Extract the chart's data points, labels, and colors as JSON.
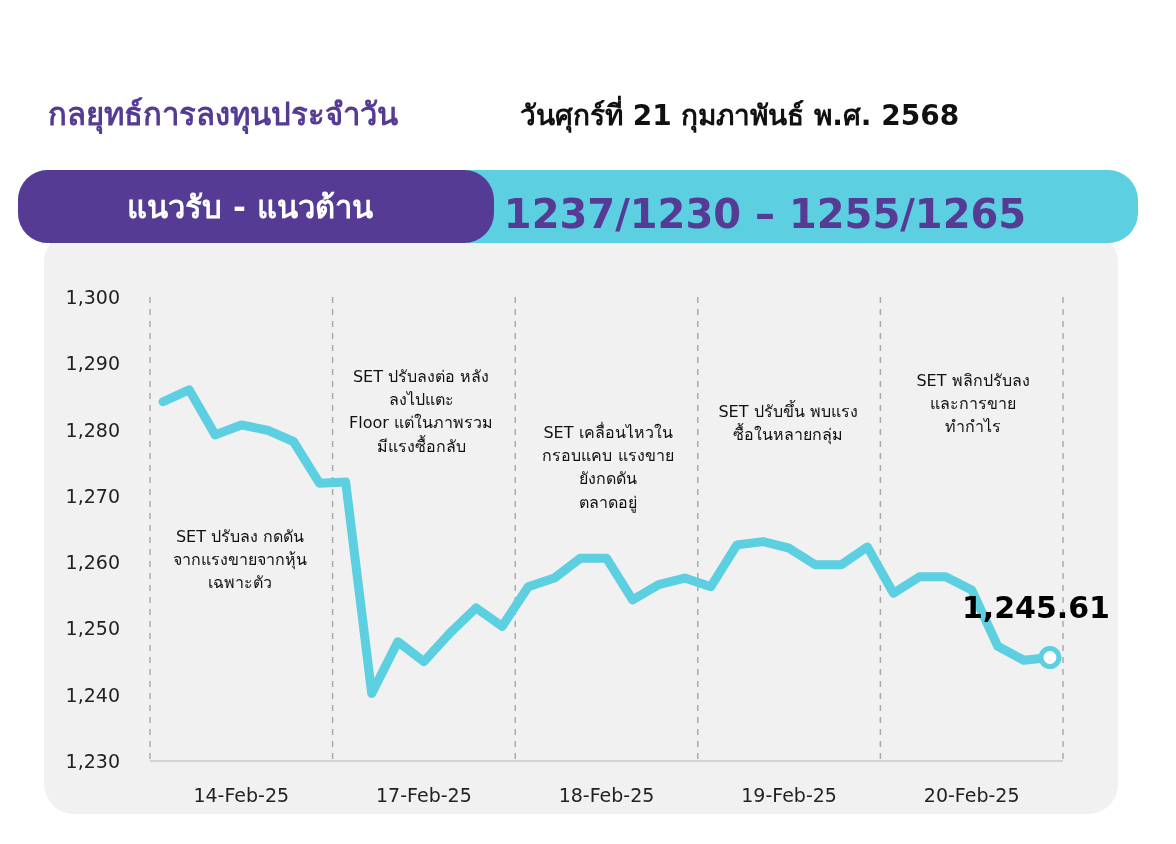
{
  "chart_data": {
    "type": "line",
    "title": "กลยุทธ์การลงทุนประจำวัน",
    "subtitle": "วันศุกร์ที่ 21 กุมภาพันธ์ พ.ศ. 2568",
    "annotations": [
      "แนวรับ - แนวต้าน",
      "1237/1230 – 1255/1265",
      "SET ปรับลง กดดัน\nจากแรงขายจากหุ้น\nเฉพาะตัว",
      "SET ปรับลงต่อ หลัง\nลงไปแตะ\nFloor แต่ในภาพรวม\nมีแรงซื้อกลับ",
      "SET เคลื่อนไหวใน\nกรอบแคบ แรงขาย\nยังกดดัน\nตลาดอยู่",
      "SET ปรับขึ้น พบแรง\nซื้อในหลายกลุ่ม",
      "SET พลิกปรับลง\nและการขาย\nทำกำไร",
      {
        "text": "1,245.61",
        "y": 1245.61
      }
    ],
    "categories": [
      null,
      null,
      null,
      "14-Feb-25",
      null,
      null,
      null,
      null,
      null,
      null,
      "17-Feb-25",
      null,
      null,
      null,
      null,
      null,
      null,
      "18-Feb-25",
      null,
      null,
      null,
      null,
      null,
      null,
      "19-Feb-25",
      null,
      null,
      null,
      null,
      null,
      null,
      "20-Feb-25",
      null,
      null,
      null
    ],
    "series": [
      {
        "color": "#5ccfe0",
        "values": [
          1284.2,
          1286.0,
          1279.2,
          1280.7,
          1279.9,
          1278.2,
          1271.9,
          1272.1,
          1240.2,
          1248.0,
          1245.0,
          1249.3,
          1253.1,
          1250.3,
          1256.3,
          1257.6,
          1260.6,
          1260.6,
          1254.3,
          1256.6,
          1257.6,
          1256.3,
          1262.6,
          1263.1,
          1262.1,
          1259.6,
          1259.6,
          1262.3,
          1255.3,
          1257.8,
          1257.8,
          1255.8,
          1247.3,
          1245.2,
          1245.61
        ]
      }
    ],
    "ylim": [
      1230,
      1300
    ],
    "yticks": [
      {
        "value": 1230,
        "label": "1,230"
      },
      {
        "value": 1240,
        "label": "1,240"
      },
      {
        "value": 1250,
        "label": "1,250"
      },
      {
        "value": 1260,
        "label": "1,260"
      },
      {
        "value": 1270,
        "label": "1,270"
      },
      {
        "value": 1280,
        "label": "1,280"
      },
      {
        "value": 1290,
        "label": "1,290"
      },
      {
        "value": 1300,
        "label": "1,300"
      }
    ]
  }
}
